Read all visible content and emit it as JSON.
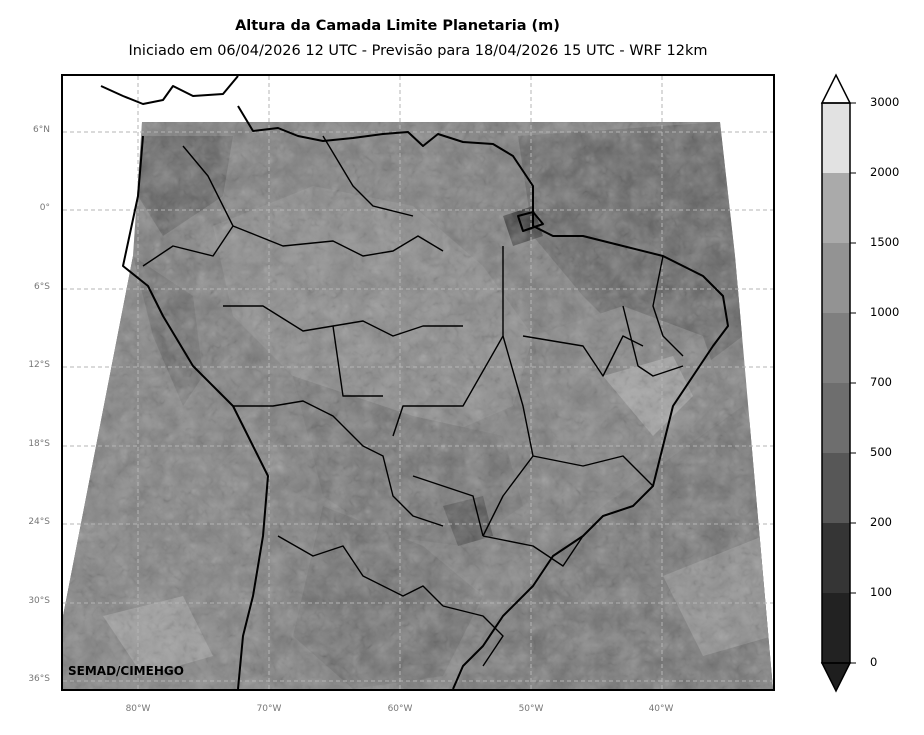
{
  "title": "Altura da Camada Limite Planetaria (m)",
  "subtitle": "Iniciado em 06/04/2026 12 UTC - Previsão para 18/04/2026 15 UTC - WRF 12km",
  "watermark": "SEMAD/CIMEHGO",
  "lat_ticks": [
    "6°N",
    "0°",
    "6°S",
    "12°S",
    "18°S",
    "24°S",
    "30°S",
    "36°S"
  ],
  "lon_ticks": [
    "80°W",
    "70°W",
    "60°W",
    "50°W",
    "40°W"
  ],
  "colorbar": {
    "levels": [
      "0",
      "100",
      "200",
      "500",
      "700",
      "1000",
      "1500",
      "2000",
      "3000"
    ],
    "colors": [
      "#1e1e1e",
      "#222222",
      "#353535",
      "#575757",
      "#6e6e6e",
      "#7f7f7f",
      "#939393",
      "#aaaaaa",
      "#e2e2e2"
    ],
    "extend": "both"
  },
  "field_colors": {
    "dominant": "#7a7a7a",
    "land_dark": "#5a5a5a",
    "land_light": "#9c9c9c",
    "ocean": "#727272"
  }
}
